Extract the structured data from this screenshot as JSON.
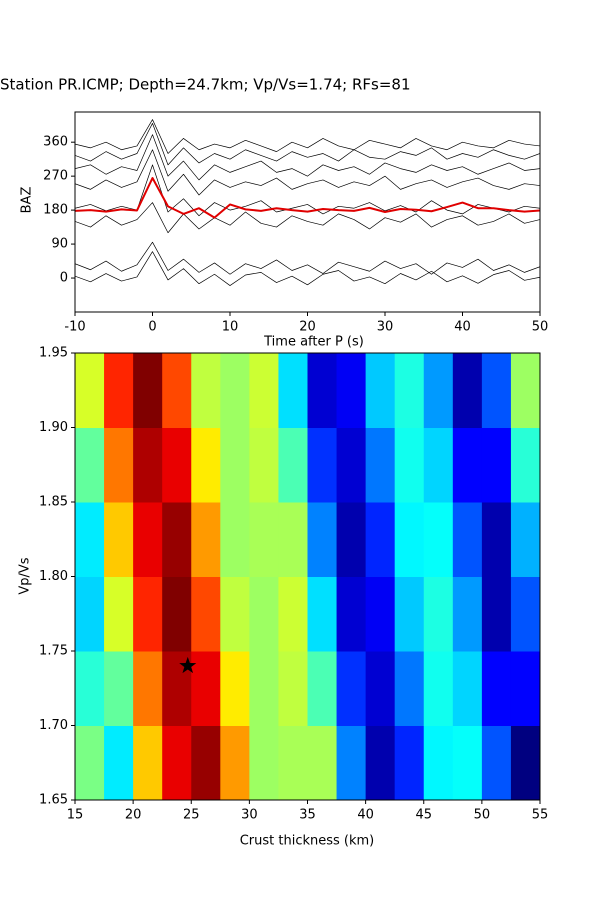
{
  "chart_data": [
    {
      "type": "line",
      "title": "Station PR.ICMP; Depth=24.7km; Vp/Vs=1.74; RFs=81",
      "xlabel": "Time after P (s)",
      "ylabel": "BAZ",
      "xlim": [
        -10,
        50
      ],
      "ylim": [
        -90,
        440
      ],
      "xticks": [
        -10,
        0,
        10,
        20,
        30,
        40,
        50
      ],
      "yticks": [
        0,
        90,
        180,
        270,
        360
      ],
      "x": [
        -10,
        -8,
        -6,
        -4,
        -2,
        0,
        2,
        4,
        6,
        8,
        10,
        12,
        14,
        16,
        18,
        20,
        22,
        24,
        26,
        28,
        30,
        32,
        34,
        36,
        38,
        40,
        42,
        44,
        46,
        48,
        50
      ],
      "series": [
        {
          "color": "#000000",
          "values": [
            5,
            -10,
            12,
            -8,
            3,
            70,
            -5,
            25,
            -15,
            10,
            -20,
            8,
            15,
            -12,
            5,
            -18,
            10,
            20,
            -8,
            3,
            -15,
            12,
            -5,
            18,
            -10,
            6,
            -14,
            9,
            20,
            -6,
            2
          ]
        },
        {
          "color": "#000000",
          "values": [
            38,
            22,
            45,
            18,
            35,
            95,
            20,
            50,
            15,
            40,
            10,
            38,
            25,
            48,
            20,
            35,
            12,
            42,
            30,
            18,
            45,
            25,
            38,
            10,
            40,
            28,
            50,
            20,
            35,
            15,
            30
          ]
        },
        {
          "color": "#000000",
          "values": [
            150,
            135,
            165,
            140,
            155,
            200,
            120,
            170,
            130,
            160,
            140,
            175,
            145,
            135,
            165,
            150,
            140,
            170,
            155,
            130,
            160,
            148,
            170,
            135,
            155,
            165,
            140,
            150,
            170,
            145,
            155
          ]
        },
        {
          "color": "#000000",
          "values": [
            185,
            195,
            178,
            190,
            180,
            300,
            175,
            210,
            165,
            200,
            180,
            190,
            205,
            175,
            185,
            195,
            170,
            190,
            185,
            200,
            178,
            192,
            175,
            205,
            180,
            170,
            195,
            185,
            175,
            190,
            185
          ]
        },
        {
          "color": "#000000",
          "values": [
            250,
            235,
            260,
            240,
            255,
            340,
            230,
            275,
            220,
            260,
            240,
            255,
            245,
            265,
            235,
            250,
            260,
            240,
            255,
            245,
            270,
            235,
            250,
            260,
            240,
            255,
            265,
            245,
            235,
            250,
            245
          ]
        },
        {
          "color": "#000000",
          "values": [
            290,
            300,
            275,
            295,
            285,
            380,
            270,
            310,
            260,
            300,
            280,
            295,
            310,
            280,
            290,
            270,
            300,
            285,
            295,
            275,
            305,
            290,
            280,
            300,
            285,
            295,
            275,
            290,
            305,
            285,
            290
          ]
        },
        {
          "color": "#000000",
          "values": [
            325,
            310,
            335,
            315,
            330,
            410,
            300,
            345,
            305,
            330,
            315,
            340,
            325,
            310,
            335,
            320,
            330,
            310,
            340,
            320,
            315,
            335,
            325,
            345,
            315,
            330,
            320,
            340,
            325,
            315,
            330
          ]
        },
        {
          "color": "#000000",
          "values": [
            355,
            345,
            360,
            340,
            350,
            420,
            330,
            370,
            340,
            355,
            345,
            365,
            350,
            335,
            360,
            345,
            370,
            350,
            340,
            365,
            355,
            345,
            370,
            350,
            340,
            360,
            350,
            345,
            365,
            355,
            350
          ]
        },
        {
          "color": "#e00000",
          "values": [
            178,
            180,
            176,
            182,
            179,
            265,
            190,
            170,
            185,
            160,
            195,
            182,
            178,
            185,
            180,
            176,
            183,
            180,
            178,
            186,
            175,
            183,
            181,
            177,
            188,
            200,
            185,
            185,
            180,
            176,
            179
          ]
        }
      ]
    },
    {
      "type": "heatmap",
      "xlabel": "Crust thickness (km)",
      "ylabel": "Vp/Vs",
      "xlim": [
        15,
        55
      ],
      "ylim": [
        1.65,
        1.95
      ],
      "xticks": [
        15,
        20,
        25,
        30,
        35,
        40,
        45,
        50,
        55
      ],
      "yticks": [
        1.65,
        {
          "value": 1.7,
          "label": "1.70"
        },
        1.75,
        {
          "value": 1.8,
          "label": "1.80"
        },
        1.85,
        {
          "value": 1.9,
          "label": "1.90"
        },
        1.95
      ],
      "colormap": "jet",
      "x": [
        16.25,
        18.75,
        21.25,
        23.75,
        26.25,
        28.75,
        31.25,
        33.75,
        36.25,
        38.75,
        41.25,
        43.75,
        46.25,
        48.75,
        51.25,
        53.75
      ],
      "y": [
        1.675,
        1.725,
        1.775,
        1.825,
        1.875,
        1.925
      ],
      "values": [
        [
          0.52,
          0.4,
          0.68,
          0.87,
          0.94,
          0.72,
          0.55,
          0.56,
          0.56,
          0.31,
          0.13,
          0.23,
          0.41,
          0.42,
          0.27,
          0.09
        ],
        [
          0.45,
          0.5,
          0.75,
          0.92,
          0.87,
          0.65,
          0.55,
          0.58,
          0.48,
          0.24,
          0.16,
          0.3,
          0.43,
          0.38,
          0.2,
          0.2
        ],
        [
          0.38,
          0.6,
          0.82,
          0.96,
          0.79,
          0.58,
          0.55,
          0.59,
          0.39,
          0.16,
          0.19,
          0.37,
          0.44,
          0.33,
          0.13,
          0.27
        ],
        [
          0.4,
          0.68,
          0.87,
          0.94,
          0.72,
          0.55,
          0.56,
          0.56,
          0.31,
          0.13,
          0.23,
          0.41,
          0.42,
          0.27,
          0.13,
          0.35
        ],
        [
          0.5,
          0.75,
          0.92,
          0.87,
          0.65,
          0.55,
          0.58,
          0.48,
          0.24,
          0.16,
          0.3,
          0.43,
          0.38,
          0.2,
          0.2,
          0.45
        ],
        [
          0.6,
          0.82,
          0.96,
          0.79,
          0.58,
          0.55,
          0.59,
          0.39,
          0.16,
          0.19,
          0.37,
          0.44,
          0.33,
          0.13,
          0.27,
          0.55
        ]
      ],
      "marker": {
        "x": 24.7,
        "y": 1.74,
        "color": "#000000"
      }
    }
  ]
}
